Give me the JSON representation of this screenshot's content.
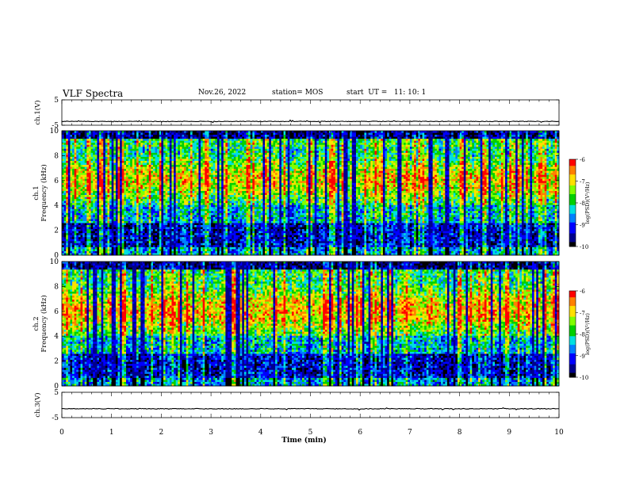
{
  "header": {
    "title": "VLF Spectra",
    "date": "Nov.26, 2022",
    "station": "station= MOS",
    "start": "start  UT =   11: 10: 1"
  },
  "colors": {
    "colormap": [
      "#000000",
      "#00008b",
      "#0000ff",
      "#0080ff",
      "#00e0e0",
      "#00d000",
      "#80ff00",
      "#ffe000",
      "#ff8000",
      "#ff0000",
      "#ffffff"
    ]
  },
  "chart_data": [
    {
      "type": "line",
      "panel": "ch1-waveform",
      "ylabel": "ch.1(V)",
      "ylim": [
        -5,
        5
      ],
      "yticks": [
        "5",
        "-5"
      ],
      "baseline": -3.5
    },
    {
      "type": "heatmap",
      "panel": "ch1-spectrogram",
      "ylabel_line1": "ch.1",
      "ylabel_line2": "Frequency (kHz)",
      "ylim": [
        0,
        10
      ],
      "yticks": [
        "0",
        "2",
        "4",
        "6",
        "8",
        "10"
      ],
      "xlim": [
        0,
        10
      ],
      "colorbar": {
        "label": "log(PSD)(V²/Hz)",
        "range": [
          -10,
          -6
        ],
        "ticks": [
          "-6",
          "-7",
          "-8",
          "-9",
          "-10"
        ]
      }
    },
    {
      "type": "heatmap",
      "panel": "ch2-spectrogram",
      "ylabel_line1": "ch.2",
      "ylabel_line2": "Frequency (kHz)",
      "ylim": [
        0,
        10
      ],
      "yticks": [
        "0",
        "2",
        "4",
        "6",
        "8",
        "10"
      ],
      "xlim": [
        0,
        10
      ],
      "colorbar": {
        "label": "log(PSD)(V²/Hz)",
        "range": [
          -10,
          -6
        ],
        "ticks": [
          "-6",
          "-7",
          "-8",
          "-9",
          "-10"
        ]
      }
    },
    {
      "type": "line",
      "panel": "ch3-waveform",
      "ylabel": "ch.3(V)",
      "ylim": [
        -5,
        5
      ],
      "yticks": [
        "5",
        "-5"
      ],
      "baseline": -1.5
    }
  ],
  "xaxis": {
    "label": "Time (min)",
    "range": [
      0,
      10
    ],
    "ticks": [
      "0",
      "1",
      "2",
      "3",
      "4",
      "5",
      "6",
      "7",
      "8",
      "9",
      "10"
    ]
  }
}
